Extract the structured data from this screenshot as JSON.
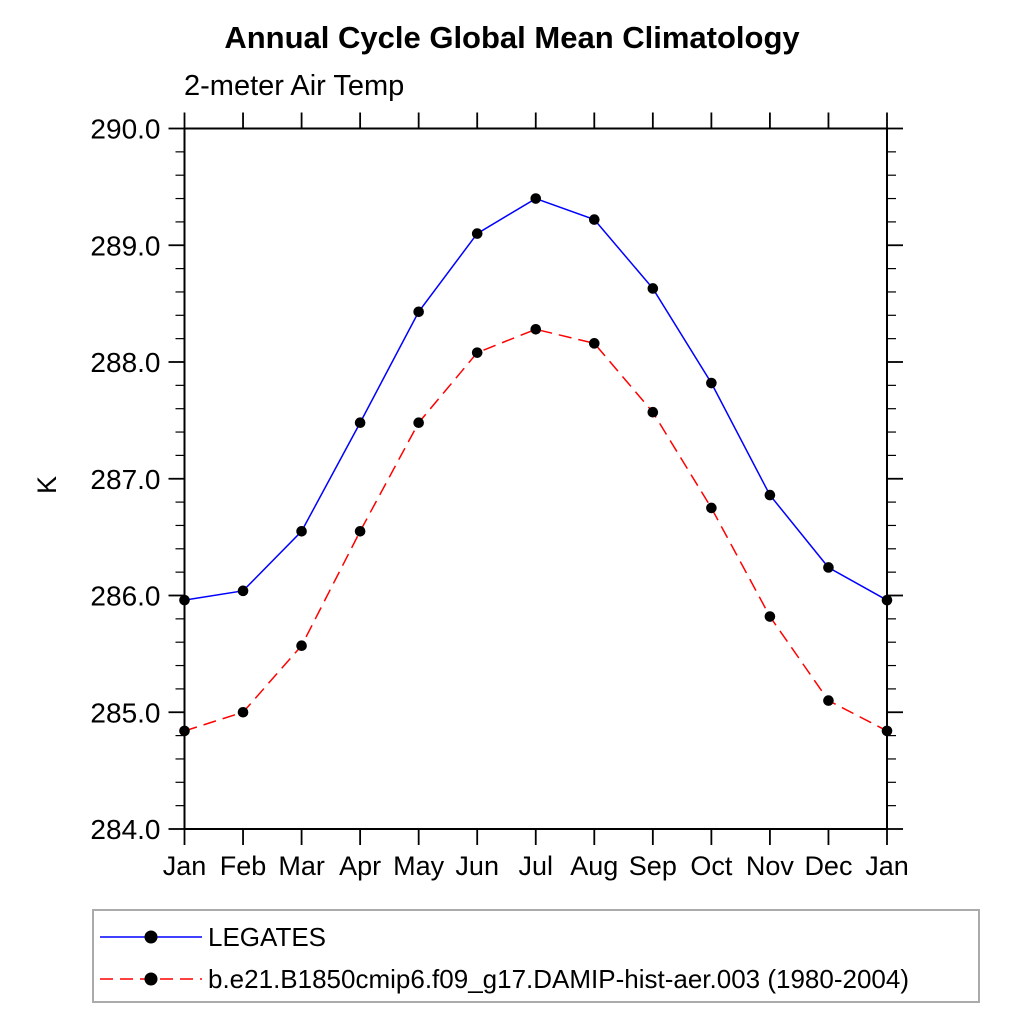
{
  "chart_data": {
    "type": "line",
    "title": "Annual Cycle Global Mean Climatology",
    "subtitle": "2-meter Air Temp",
    "ylabel": "K",
    "xlabel": "",
    "categories": [
      "Jan",
      "Feb",
      "Mar",
      "Apr",
      "May",
      "Jun",
      "Jul",
      "Aug",
      "Sep",
      "Oct",
      "Nov",
      "Dec",
      "Jan"
    ],
    "ylim": [
      284.0,
      290.0
    ],
    "ytick_labels": [
      "284.0",
      "285.0",
      "286.0",
      "287.0",
      "288.0",
      "289.0",
      "290.0"
    ],
    "yminor_step": 0.2,
    "grid": false,
    "legend_position": "bottom-left-box",
    "axis_color": "#000000",
    "series": [
      {
        "name": "LEGATES",
        "color": "#0000ff",
        "line_style": "solid",
        "marker": "filled-circle",
        "marker_color": "#000000",
        "values": [
          285.96,
          286.04,
          286.55,
          287.48,
          288.43,
          289.1,
          289.4,
          289.22,
          288.63,
          287.82,
          286.86,
          286.24,
          285.96
        ]
      },
      {
        "name": "b.e21.B1850cmip6.f09_g17.DAMIP-hist-aer.003 (1980-2004)",
        "color": "#ff0000",
        "line_style": "dashed",
        "marker": "filled-circle",
        "marker_color": "#000000",
        "values": [
          284.84,
          285.0,
          285.57,
          286.55,
          287.48,
          288.08,
          288.28,
          288.16,
          287.57,
          286.75,
          285.82,
          285.1,
          284.84
        ]
      }
    ]
  }
}
